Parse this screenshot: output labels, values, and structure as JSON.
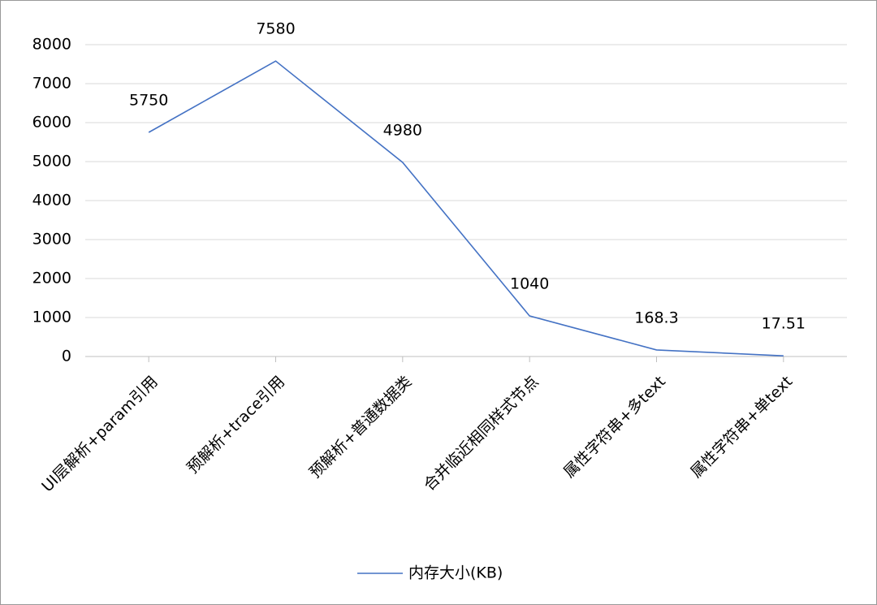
{
  "chart_data": {
    "type": "line",
    "categories": [
      "UI层解析+param引用",
      "预解析+trace引用",
      "预解析+普通数据类",
      "合并临近相同样式节点",
      "属性字符串+多text",
      "属性字符串+单text"
    ],
    "series": [
      {
        "name": "内存大小(KB)",
        "color": "#4472c4",
        "values": [
          5750,
          7580,
          4980,
          1040,
          168.3,
          17.51
        ]
      }
    ],
    "ylim": [
      0,
      8000
    ],
    "yticks": [
      0,
      1000,
      2000,
      3000,
      4000,
      5000,
      6000,
      7000,
      8000
    ],
    "grid": true,
    "data_labels": true,
    "legend": "bottom"
  }
}
